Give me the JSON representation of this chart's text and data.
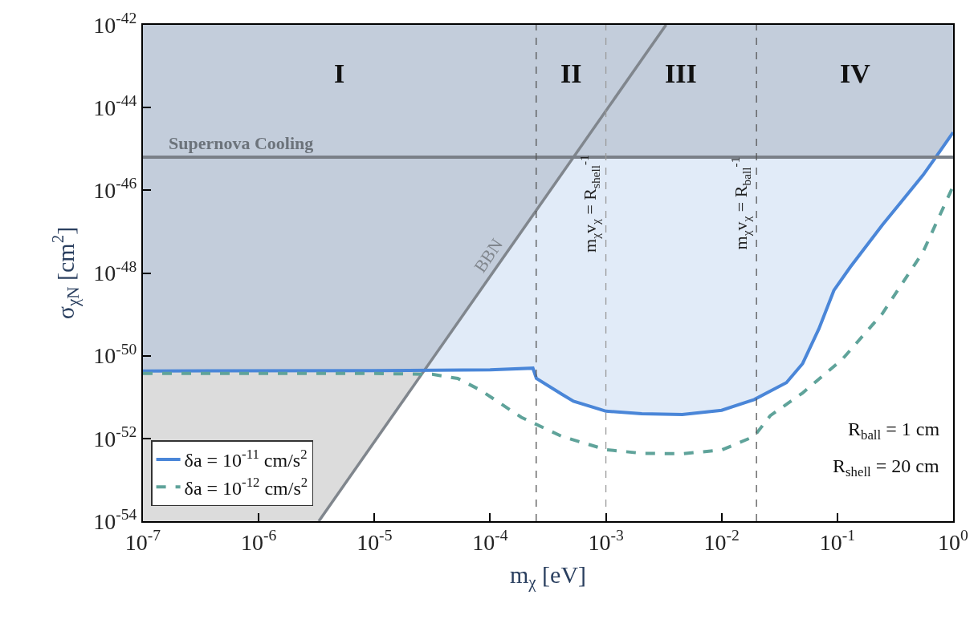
{
  "chart_data": {
    "type": "line",
    "xlabel": "m$_{χ}$ [eV]",
    "ylabel": "σ$_{χN}$ [cm$^{2}$]",
    "log": "xy",
    "xlim": [
      1e-07,
      1
    ],
    "ylim": [
      1e-54,
      1e-42
    ],
    "xticks": [
      {
        "value": 1e-07,
        "label": "10$^{-7}$"
      },
      {
        "value": 1e-06,
        "label": "10$^{-6}$"
      },
      {
        "value": 1e-05,
        "label": "10$^{-5}$"
      },
      {
        "value": 0.0001,
        "label": "10$^{-4}$"
      },
      {
        "value": 0.001,
        "label": "10$^{-3}$"
      },
      {
        "value": 0.01,
        "label": "10$^{-2}$"
      },
      {
        "value": 0.1,
        "label": "10$^{-1}$"
      },
      {
        "value": 1,
        "label": "10$^{0}$"
      }
    ],
    "yticks": [
      {
        "value": 1e-54,
        "label": "10$^{-54}$"
      },
      {
        "value": 1e-52,
        "label": "10$^{-52}$"
      },
      {
        "value": 1e-50,
        "label": "10$^{-50}$"
      },
      {
        "value": 1e-48,
        "label": "10$^{-48}$"
      },
      {
        "value": 1e-46,
        "label": "10$^{-46}$"
      },
      {
        "value": 1e-44,
        "label": "10$^{-44}$"
      },
      {
        "value": 1e-42,
        "label": "10$^{-42}$"
      }
    ],
    "grid": false,
    "legend": "bottom left",
    "marker": "none",
    "series": [
      {
        "type": "area",
        "color": "#dcdcdc",
        "x": [
          1e-07,
          3.31e-06,
          2.69e-05
        ],
        "values": [
          4.27e-51,
          4.3e-51,
          4.27e-51
        ]
      },
      {
        "type": "area",
        "color": "#e1ebf8",
        "x": [
          2.69e-05,
          5.25e-05,
          0.0001,
          0.000234,
          0.000251,
          0.000417,
          0.000525,
          0.708,
          1
        ],
        "values": [
          4.37e-51,
          6.31e-50,
          8.32e-49,
          2.51e-47,
          3.31e-47,
          2.51e-46,
          6.31e-46,
          6.31e-46,
          6.31e-46
        ]
      },
      {
        "type": "area",
        "color": "#ffffff",
        "x": [
          3.31e-06,
          2.69e-05,
          5.25e-05,
          0.0001,
          0.000234,
          0.000251,
          0.000417,
          0.000525,
          0.001,
          0.00204,
          0.00457,
          0.01,
          0.0191,
          0.0363,
          0.0501,
          0.0692,
          0.0933,
          0.129,
          0.245,
          0.55,
          0.708,
          1
        ],
        "values": [
          1e-54,
          4.27e-51,
          4.47e-51,
          4.57e-51,
          5.01e-51,
          2.82e-51,
          1.17e-51,
          7.94e-52,
          4.57e-52,
          3.98e-52,
          3.8e-52,
          4.79e-52,
          8.71e-52,
          2.24e-51,
          6.46e-51,
          4.47e-50,
          3.8e-49,
          1.38e-48,
          1.45e-47,
          2.34e-46,
          6.31e-46,
          2.51e-45
        ]
      },
      {
        "name": "BBN",
        "color": "#80868d",
        "x": [
          3.31e-06,
          0.00331
        ],
        "values": [
          1e-54,
          1e-42
        ]
      },
      {
        "name": "δa = 10$^{-11}$ cm/s$^{2}$",
        "color": "#4a86d8",
        "line_style": "solid",
        "x": [
          1e-07,
          1e-05,
          0.0001,
          0.000234,
          0.000251,
          0.000417,
          0.000525,
          0.001,
          0.00204,
          0.00457,
          0.01,
          0.0191,
          0.0363,
          0.0501,
          0.0692,
          0.0933,
          0.129,
          0.245,
          0.55,
          0.708,
          1
        ],
        "values": [
          4.27e-51,
          4.37e-51,
          4.57e-51,
          5.01e-51,
          2.82e-51,
          1.17e-51,
          7.94e-52,
          4.57e-52,
          3.98e-52,
          3.8e-52,
          4.79e-52,
          8.71e-52,
          2.24e-51,
          6.46e-51,
          4.47e-50,
          3.8e-49,
          1.38e-48,
          1.45e-47,
          2.34e-46,
          6.31e-46,
          2.51e-45
        ]
      },
      {
        "name": "δa = 10$^{-12}$ cm/s$^{2}$",
        "color": "#5fa39a",
        "line_style": "dashed",
        "x": [
          1e-07,
          1e-05,
          3.16e-05,
          5.25e-05,
          8.32e-05,
          0.000186,
          0.000417,
          0.001,
          0.00204,
          0.00457,
          0.01,
          0.0191,
          0.0263,
          0.0501,
          0.11,
          0.245,
          0.55,
          1
        ],
        "values": [
          3.72e-51,
          3.72e-51,
          3.55e-51,
          2.82e-51,
          1.45e-51,
          3.24e-52,
          1.12e-52,
          5.37e-53,
          4.37e-53,
          4.27e-53,
          5.25e-53,
          1.12e-52,
          3.55e-52,
          1.26e-51,
          8.13e-51,
          1.05e-49,
          3.24e-48,
          1.26e-46
        ]
      }
    ],
    "ref_lines": [
      {
        "axis": "y",
        "value": 6.31e-46,
        "label": "Supernova Cooling",
        "color": "#7a8088",
        "line_style": "solid"
      },
      {
        "axis": "x",
        "value": 0.00025,
        "label": null,
        "color": "#555555",
        "line_style": "dashed"
      },
      {
        "axis": "x",
        "value": 0.001,
        "label": "m$_{χ}$v$_{χ}$ = R$_{shell}$$^{-1}$",
        "color": "#999999",
        "line_style": "dashed"
      },
      {
        "axis": "x",
        "value": 0.02,
        "label": "m$_{χ}$v$_{χ}$ = R$_{ball}$$^{-1}$",
        "color": "#555555",
        "line_style": "dashed"
      }
    ],
    "annotations": [
      "I",
      "II",
      "III",
      "IV",
      "R$_{ball}$ = 1 cm",
      "R$_{shell}$ = 20 cm"
    ]
  }
}
